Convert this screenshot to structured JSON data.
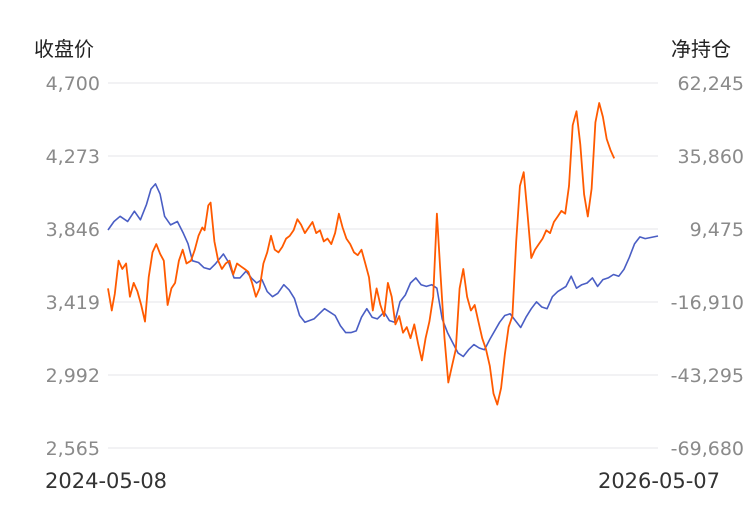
{
  "chart_data": {
    "type": "line",
    "title": "",
    "y_left": {
      "label": "收盘价",
      "ticks": [
        "4,700",
        "4,273",
        "3,846",
        "3,419",
        "2,992",
        "2,565"
      ],
      "ylim": [
        2565,
        4700
      ]
    },
    "y_right": {
      "label": "净持仓",
      "ticks": [
        "62,245",
        "35,860",
        "9,475",
        "-16,910",
        "-43,295",
        "-69,680"
      ],
      "ylim": [
        -69680,
        62245
      ]
    },
    "x": {
      "ticks": [
        "2024-05-08",
        "2026-05-07"
      ]
    },
    "grid": true,
    "legend": "none",
    "series": [
      {
        "axis": "left",
        "color": "#4a5ec4",
        "points": [
          [
            "2024-05-08",
            3840
          ],
          [
            "2024-05-16",
            3890
          ],
          [
            "2024-05-24",
            3920
          ],
          [
            "2024-06-03",
            3890
          ],
          [
            "2024-06-12",
            3950
          ],
          [
            "2024-06-20",
            3900
          ],
          [
            "2024-06-28",
            3990
          ],
          [
            "2024-07-04",
            4080
          ],
          [
            "2024-07-10",
            4110
          ],
          [
            "2024-07-16",
            4050
          ],
          [
            "2024-07-22",
            3920
          ],
          [
            "2024-07-30",
            3870
          ],
          [
            "2024-08-08",
            3890
          ],
          [
            "2024-08-16",
            3820
          ],
          [
            "2024-08-22",
            3760
          ],
          [
            "2024-08-28",
            3660
          ],
          [
            "2024-09-05",
            3650
          ],
          [
            "2024-09-12",
            3620
          ],
          [
            "2024-09-20",
            3610
          ],
          [
            "2024-09-27",
            3640
          ],
          [
            "2024-10-08",
            3700
          ],
          [
            "2024-10-15",
            3650
          ],
          [
            "2024-10-22",
            3560
          ],
          [
            "2024-10-30",
            3560
          ],
          [
            "2024-11-07",
            3600
          ],
          [
            "2024-11-14",
            3560
          ],
          [
            "2024-11-21",
            3530
          ],
          [
            "2024-11-28",
            3550
          ],
          [
            "2024-12-05",
            3480
          ],
          [
            "2024-12-12",
            3450
          ],
          [
            "2024-12-19",
            3470
          ],
          [
            "2024-12-27",
            3520
          ],
          [
            "2025-01-03",
            3490
          ],
          [
            "2025-01-10",
            3440
          ],
          [
            "2025-01-17",
            3340
          ],
          [
            "2025-01-24",
            3300
          ],
          [
            "2025-02-05",
            3320
          ],
          [
            "2025-02-12",
            3350
          ],
          [
            "2025-02-19",
            3380
          ],
          [
            "2025-02-26",
            3360
          ],
          [
            "2025-03-05",
            3340
          ],
          [
            "2025-03-12",
            3280
          ],
          [
            "2025-03-19",
            3240
          ],
          [
            "2025-03-26",
            3240
          ],
          [
            "2025-04-02",
            3250
          ],
          [
            "2025-04-09",
            3330
          ],
          [
            "2025-04-16",
            3380
          ],
          [
            "2025-04-23",
            3330
          ],
          [
            "2025-04-30",
            3320
          ],
          [
            "2025-05-09",
            3360
          ],
          [
            "2025-05-16",
            3310
          ],
          [
            "2025-05-23",
            3300
          ],
          [
            "2025-05-30",
            3420
          ],
          [
            "2025-06-06",
            3460
          ],
          [
            "2025-06-13",
            3530
          ],
          [
            "2025-06-20",
            3560
          ],
          [
            "2025-06-27",
            3520
          ],
          [
            "2025-07-04",
            3510
          ],
          [
            "2025-07-11",
            3520
          ],
          [
            "2025-07-18",
            3500
          ],
          [
            "2025-07-25",
            3320
          ],
          [
            "2025-08-01",
            3240
          ],
          [
            "2025-08-08",
            3180
          ],
          [
            "2025-08-15",
            3120
          ],
          [
            "2025-08-22",
            3100
          ],
          [
            "2025-08-29",
            3140
          ],
          [
            "2025-09-05",
            3170
          ],
          [
            "2025-09-12",
            3150
          ],
          [
            "2025-09-19",
            3140
          ],
          [
            "2025-09-26",
            3200
          ],
          [
            "2025-10-09",
            3300
          ],
          [
            "2025-10-16",
            3340
          ],
          [
            "2025-10-23",
            3350
          ],
          [
            "2025-10-30",
            3310
          ],
          [
            "2025-11-06",
            3270
          ],
          [
            "2025-11-13",
            3330
          ],
          [
            "2025-11-20",
            3380
          ],
          [
            "2025-11-27",
            3420
          ],
          [
            "2025-12-04",
            3390
          ],
          [
            "2025-12-11",
            3380
          ],
          [
            "2025-12-18",
            3450
          ],
          [
            "2025-12-25",
            3480
          ],
          [
            "2026-01-05",
            3510
          ],
          [
            "2026-01-12",
            3570
          ],
          [
            "2026-01-19",
            3500
          ],
          [
            "2026-01-26",
            3520
          ],
          [
            "2026-02-02",
            3530
          ],
          [
            "2026-02-09",
            3560
          ],
          [
            "2026-02-16",
            3510
          ],
          [
            "2026-02-23",
            3550
          ],
          [
            "2026-03-02",
            3560
          ],
          [
            "2026-03-09",
            3580
          ],
          [
            "2026-03-16",
            3570
          ],
          [
            "2026-03-23",
            3610
          ],
          [
            "2026-03-30",
            3680
          ],
          [
            "2026-04-06",
            3760
          ],
          [
            "2026-04-13",
            3800
          ],
          [
            "2026-04-20",
            3790
          ],
          [
            "2026-05-07",
            3805
          ]
        ]
      },
      {
        "axis": "right",
        "color": "#ff5a00",
        "points": [
          [
            "2024-05-08",
            -12000
          ],
          [
            "2024-05-13",
            -20000
          ],
          [
            "2024-05-17",
            -14000
          ],
          [
            "2024-05-22",
            -2000
          ],
          [
            "2024-05-27",
            -5000
          ],
          [
            "2024-06-01",
            -3000
          ],
          [
            "2024-06-06",
            -15000
          ],
          [
            "2024-06-11",
            -10000
          ],
          [
            "2024-06-16",
            -13000
          ],
          [
            "2024-06-21",
            -18000
          ],
          [
            "2024-06-26",
            -24000
          ],
          [
            "2024-07-01",
            -8000
          ],
          [
            "2024-07-06",
            1000
          ],
          [
            "2024-07-11",
            4000
          ],
          [
            "2024-07-16",
            500
          ],
          [
            "2024-07-21",
            -2000
          ],
          [
            "2024-07-26",
            -18000
          ],
          [
            "2024-07-31",
            -12000
          ],
          [
            "2024-08-05",
            -10000
          ],
          [
            "2024-08-10",
            -2000
          ],
          [
            "2024-08-15",
            2000
          ],
          [
            "2024-08-20",
            -3000
          ],
          [
            "2024-08-26",
            -2000
          ],
          [
            "2024-08-31",
            2000
          ],
          [
            "2024-09-05",
            7000
          ],
          [
            "2024-09-10",
            10000
          ],
          [
            "2024-09-13",
            9000
          ],
          [
            "2024-09-18",
            18000
          ],
          [
            "2024-09-21",
            19000
          ],
          [
            "2024-09-26",
            5000
          ],
          [
            "2024-10-01",
            -2000
          ],
          [
            "2024-10-06",
            -5000
          ],
          [
            "2024-10-11",
            -3000
          ],
          [
            "2024-10-16",
            -2000
          ],
          [
            "2024-10-21",
            -7000
          ],
          [
            "2024-10-26",
            -3000
          ],
          [
            "2024-10-31",
            -4000
          ],
          [
            "2024-11-05",
            -5000
          ],
          [
            "2024-11-10",
            -6000
          ],
          [
            "2024-11-15",
            -10000
          ],
          [
            "2024-11-20",
            -15000
          ],
          [
            "2024-11-25",
            -12000
          ],
          [
            "2024-11-30",
            -3000
          ],
          [
            "2024-12-05",
            1000
          ],
          [
            "2024-12-10",
            7000
          ],
          [
            "2024-12-15",
            2000
          ],
          [
            "2024-12-20",
            1000
          ],
          [
            "2024-12-25",
            3000
          ],
          [
            "2024-12-30",
            6000
          ],
          [
            "2025-01-04",
            7000
          ],
          [
            "2025-01-09",
            9000
          ],
          [
            "2025-01-14",
            13000
          ],
          [
            "2025-01-19",
            11000
          ],
          [
            "2025-01-24",
            8000
          ],
          [
            "2025-01-29",
            10000
          ],
          [
            "2025-02-03",
            12000
          ],
          [
            "2025-02-08",
            8000
          ],
          [
            "2025-02-13",
            9000
          ],
          [
            "2025-02-18",
            5000
          ],
          [
            "2025-02-23",
            6000
          ],
          [
            "2025-02-28",
            4000
          ],
          [
            "2025-03-05",
            8000
          ],
          [
            "2025-03-10",
            15000
          ],
          [
            "2025-03-15",
            10000
          ],
          [
            "2025-03-20",
            6000
          ],
          [
            "2025-03-25",
            4000
          ],
          [
            "2025-03-30",
            1000
          ],
          [
            "2025-04-04",
            0
          ],
          [
            "2025-04-09",
            2000
          ],
          [
            "2025-04-14",
            -3000
          ],
          [
            "2025-04-19",
            -8000
          ],
          [
            "2025-04-24",
            -20000
          ],
          [
            "2025-04-29",
            -12000
          ],
          [
            "2025-05-04",
            -18000
          ],
          [
            "2025-05-09",
            -22000
          ],
          [
            "2025-05-14",
            -10000
          ],
          [
            "2025-05-19",
            -15000
          ],
          [
            "2025-05-24",
            -25000
          ],
          [
            "2025-05-29",
            -22000
          ],
          [
            "2025-06-03",
            -28000
          ],
          [
            "2025-06-08",
            -26000
          ],
          [
            "2025-06-13",
            -30000
          ],
          [
            "2025-06-18",
            -25000
          ],
          [
            "2025-06-23",
            -32000
          ],
          [
            "2025-06-28",
            -38000
          ],
          [
            "2025-07-03",
            -30000
          ],
          [
            "2025-07-08",
            -24000
          ],
          [
            "2025-07-13",
            -15000
          ],
          [
            "2025-07-18",
            15000
          ],
          [
            "2025-07-23",
            -8000
          ],
          [
            "2025-07-28",
            -30000
          ],
          [
            "2025-08-02",
            -46000
          ],
          [
            "2025-08-07",
            -40000
          ],
          [
            "2025-08-12",
            -34000
          ],
          [
            "2025-08-17",
            -12000
          ],
          [
            "2025-08-22",
            -5000
          ],
          [
            "2025-08-27",
            -15000
          ],
          [
            "2025-09-01",
            -20000
          ],
          [
            "2025-09-06",
            -18000
          ],
          [
            "2025-09-11",
            -24000
          ],
          [
            "2025-09-16",
            -30000
          ],
          [
            "2025-09-21",
            -34000
          ],
          [
            "2025-09-26",
            -40000
          ],
          [
            "2025-10-01",
            -50000
          ],
          [
            "2025-10-06",
            -54000
          ],
          [
            "2025-10-11",
            -48000
          ],
          [
            "2025-10-16",
            -36000
          ],
          [
            "2025-10-21",
            -26000
          ],
          [
            "2025-10-26",
            -22000
          ],
          [
            "2025-10-31",
            5000
          ],
          [
            "2025-11-05",
            25000
          ],
          [
            "2025-11-10",
            30000
          ],
          [
            "2025-11-15",
            15000
          ],
          [
            "2025-11-20",
            -1000
          ],
          [
            "2025-11-25",
            2000
          ],
          [
            "2025-11-30",
            4000
          ],
          [
            "2025-12-05",
            6000
          ],
          [
            "2025-12-10",
            9000
          ],
          [
            "2025-12-15",
            8000
          ],
          [
            "2025-12-20",
            12000
          ],
          [
            "2025-12-25",
            14000
          ],
          [
            "2025-12-30",
            16000
          ],
          [
            "2026-01-04",
            15000
          ],
          [
            "2026-01-09",
            25000
          ],
          [
            "2026-01-14",
            47000
          ],
          [
            "2026-01-19",
            52000
          ],
          [
            "2026-01-24",
            40000
          ],
          [
            "2026-01-29",
            22000
          ],
          [
            "2026-02-03",
            14000
          ],
          [
            "2026-02-08",
            24000
          ],
          [
            "2026-02-13",
            48000
          ],
          [
            "2026-02-18",
            55000
          ],
          [
            "2026-02-23",
            50000
          ],
          [
            "2026-02-28",
            42000
          ],
          [
            "2026-03-05",
            38000
          ],
          [
            "2026-03-10",
            35000
          ]
        ]
      }
    ]
  }
}
